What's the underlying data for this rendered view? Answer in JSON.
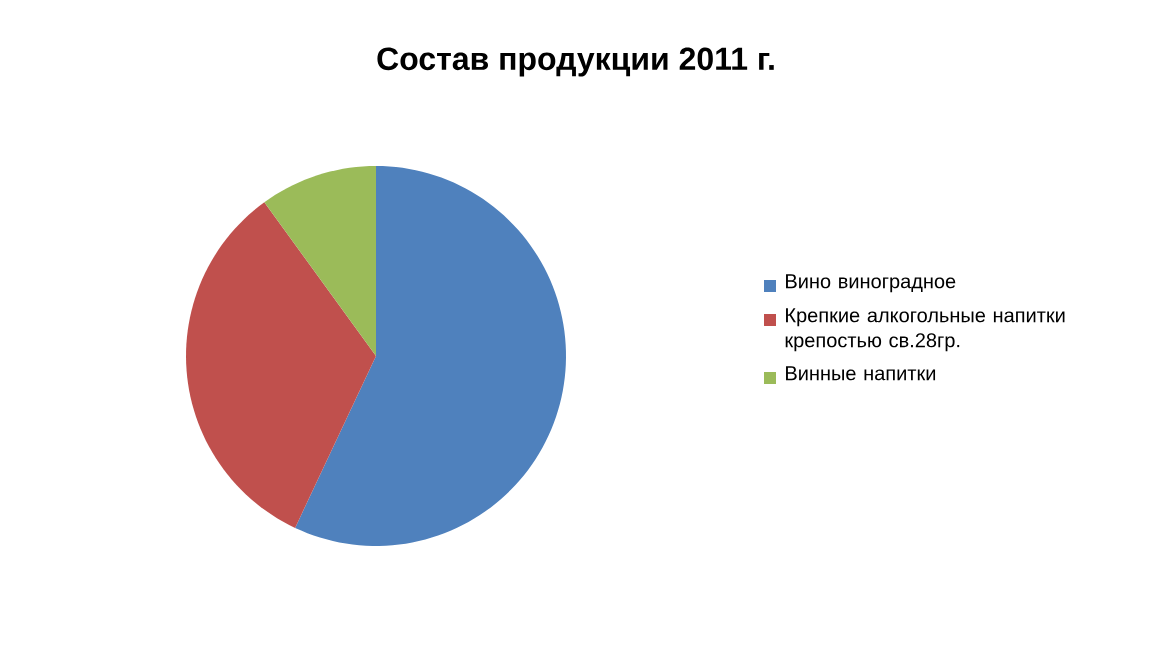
{
  "chart_data": {
    "type": "pie",
    "title": "Состав продукции 2011 г.",
    "categories": [
      "Вино виноградное",
      "Крепкие алкогольные напитки крепостью св.28гр.",
      "Винные напитки"
    ],
    "values": [
      57,
      33,
      10
    ],
    "colors": [
      "#4f81bd",
      "#c0504d",
      "#9bbb59"
    ],
    "legend": "right"
  }
}
